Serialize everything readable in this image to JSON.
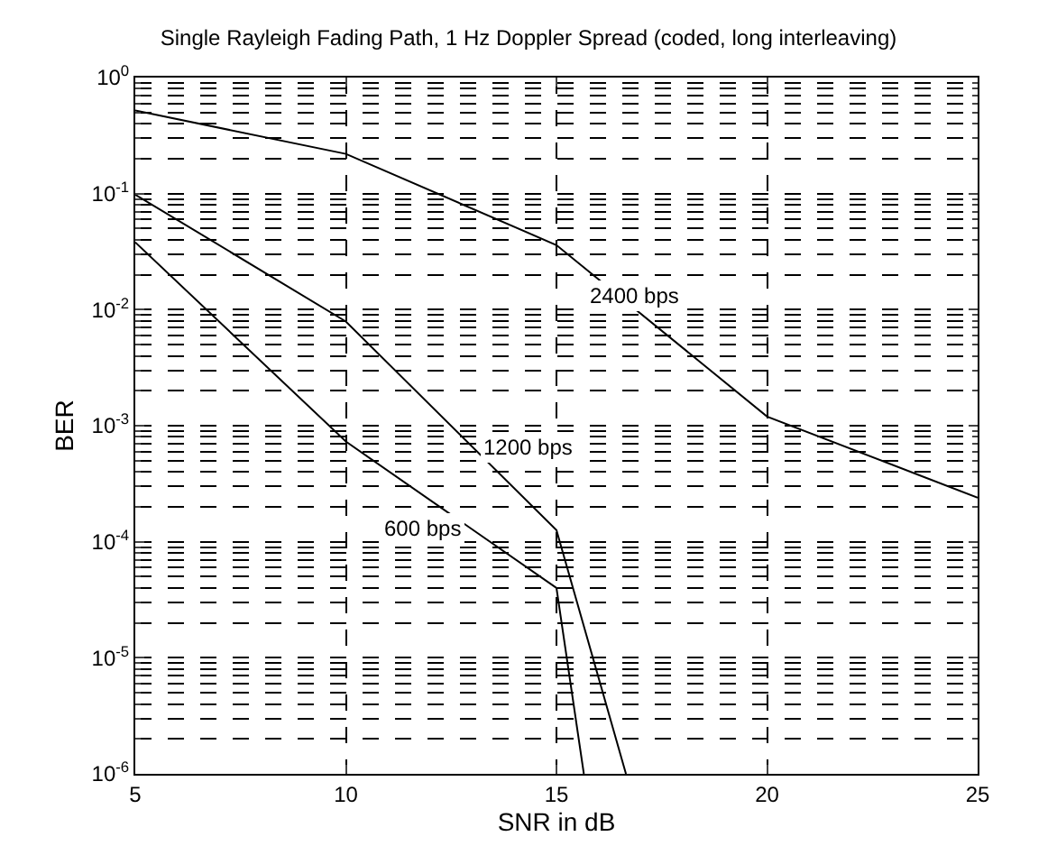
{
  "chart_data": {
    "type": "line",
    "title": "Single Rayleigh Fading Path, 1 Hz Doppler Spread (coded, long interleaving)",
    "xlabel": "SNR in dB",
    "ylabel": "BER",
    "series": [
      {
        "name": "2400 bps",
        "color": "#000000",
        "x": [
          5,
          10,
          15,
          20,
          25
        ],
        "values": [
          0.52,
          0.22,
          0.036,
          0.0012,
          0.00024
        ]
      },
      {
        "name": "1200 bps",
        "color": "#000000",
        "x": [
          5,
          10,
          15,
          16.65
        ],
        "values": [
          0.098,
          0.0079,
          0.000126,
          1e-06
        ]
      },
      {
        "name": "600 bps",
        "color": "#000000",
        "x": [
          5,
          10,
          15,
          15.65
        ],
        "values": [
          0.038,
          0.00073,
          4e-05,
          1e-06
        ]
      }
    ],
    "log": "y",
    "grid": true,
    "line_style": "solid",
    "marker": "none",
    "xlim": [
      5,
      25
    ],
    "xticks": [
      5,
      10,
      15,
      20,
      25
    ],
    "ylim": [
      1e-06,
      1
    ],
    "yticks": [
      {
        "value": 1e-06,
        "label": "10$^{-6}$"
      },
      {
        "value": 1e-05,
        "label": "10$^{-5}$"
      },
      {
        "value": 0.0001,
        "label": "10$^{-4}$"
      },
      {
        "value": 0.001,
        "label": "10$^{-3}$"
      },
      {
        "value": 0.01,
        "label": "10$^{-2}$"
      },
      {
        "value": 0.1,
        "label": "10$^{-1}$"
      },
      {
        "value": 1,
        "label": "10$^{0}$"
      }
    ]
  }
}
